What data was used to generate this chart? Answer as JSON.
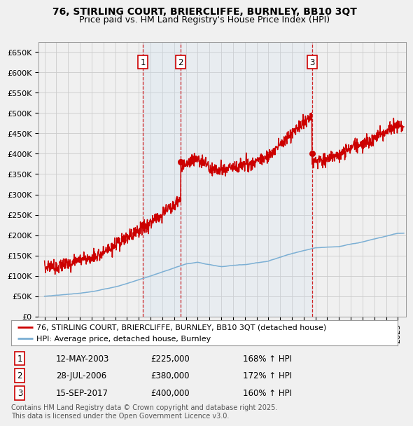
{
  "title": "76, STIRLING COURT, BRIERCLIFFE, BURNLEY, BB10 3QT",
  "subtitle": "Price paid vs. HM Land Registry's House Price Index (HPI)",
  "background_color": "#f0f0f0",
  "plot_bg_color": "#f0f0f0",
  "grid_color": "#cccccc",
  "red_line_color": "#cc0000",
  "blue_line_color": "#7bafd4",
  "sale_marker_color": "#cc0000",
  "vline_color": "#cc0000",
  "vband_color": "#cce0f0",
  "ylim": [
    0,
    675000
  ],
  "yticks": [
    0,
    50000,
    100000,
    150000,
    200000,
    250000,
    300000,
    350000,
    400000,
    450000,
    500000,
    550000,
    600000,
    650000
  ],
  "ytick_labels": [
    "£0",
    "£50K",
    "£100K",
    "£150K",
    "£200K",
    "£250K",
    "£300K",
    "£350K",
    "£400K",
    "£450K",
    "£500K",
    "£550K",
    "£600K",
    "£650K"
  ],
  "xlim_start": 1994.5,
  "xlim_end": 2025.7,
  "sale_dates": [
    2003.36,
    2006.57,
    2017.71
  ],
  "sale_prices": [
    225000,
    380000,
    400000
  ],
  "sale_labels": [
    "1",
    "2",
    "3"
  ],
  "legend_entries": [
    "76, STIRLING COURT, BRIERCLIFFE, BURNLEY, BB10 3QT (detached house)",
    "HPI: Average price, detached house, Burnley"
  ],
  "table_data": [
    [
      "1",
      "12-MAY-2003",
      "£225,000",
      "168% ↑ HPI"
    ],
    [
      "2",
      "28-JUL-2006",
      "£380,000",
      "172% ↑ HPI"
    ],
    [
      "3",
      "15-SEP-2017",
      "£400,000",
      "160% ↑ HPI"
    ]
  ],
  "footnote": "Contains HM Land Registry data © Crown copyright and database right 2025.\nThis data is licensed under the Open Government Licence v3.0.",
  "title_fontsize": 10,
  "subtitle_fontsize": 9,
  "axis_fontsize": 8,
  "legend_fontsize": 8,
  "table_fontsize": 8.5
}
